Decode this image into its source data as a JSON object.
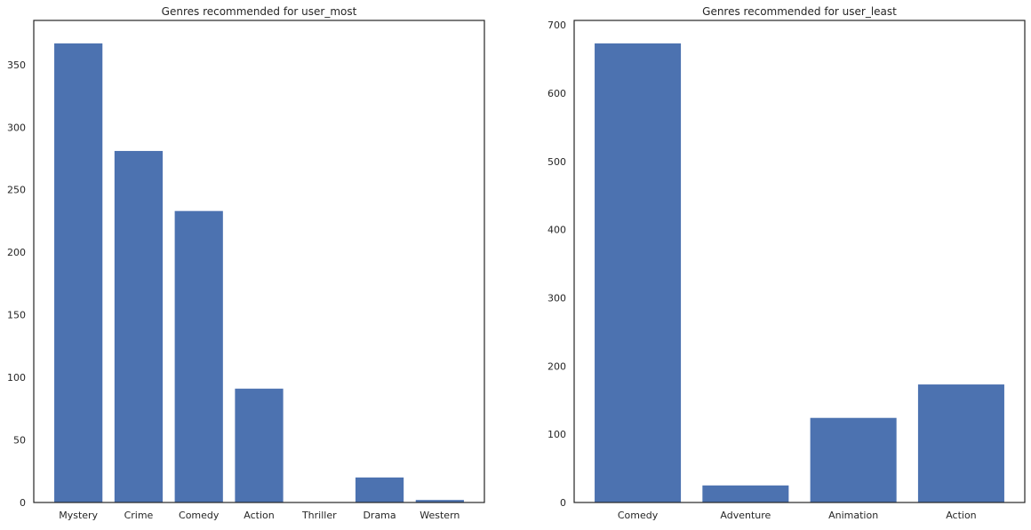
{
  "chart_data": [
    {
      "type": "bar",
      "title": "Genres recommended for user_most",
      "categories": [
        "Mystery",
        "Crime",
        "Comedy",
        "Action",
        "Thriller",
        "Drama",
        "Western"
      ],
      "values": [
        367,
        281,
        233,
        91,
        0,
        20,
        2
      ],
      "xlabel": "",
      "ylabel": "",
      "ylim": [
        0,
        385.35
      ],
      "yticks": [
        0,
        50,
        100,
        150,
        200,
        250,
        300,
        350
      ],
      "grid": false,
      "color": "#4c72b0"
    },
    {
      "type": "bar",
      "title": "Genres recommended for user_least",
      "categories": [
        "Comedy",
        "Adventure",
        "Animation",
        "Action"
      ],
      "values": [
        673,
        25,
        124,
        173
      ],
      "xlabel": "",
      "ylabel": "",
      "ylim": [
        0,
        706.65
      ],
      "yticks": [
        0,
        100,
        200,
        300,
        400,
        500,
        600,
        700
      ],
      "grid": false,
      "color": "#4c72b0"
    }
  ]
}
